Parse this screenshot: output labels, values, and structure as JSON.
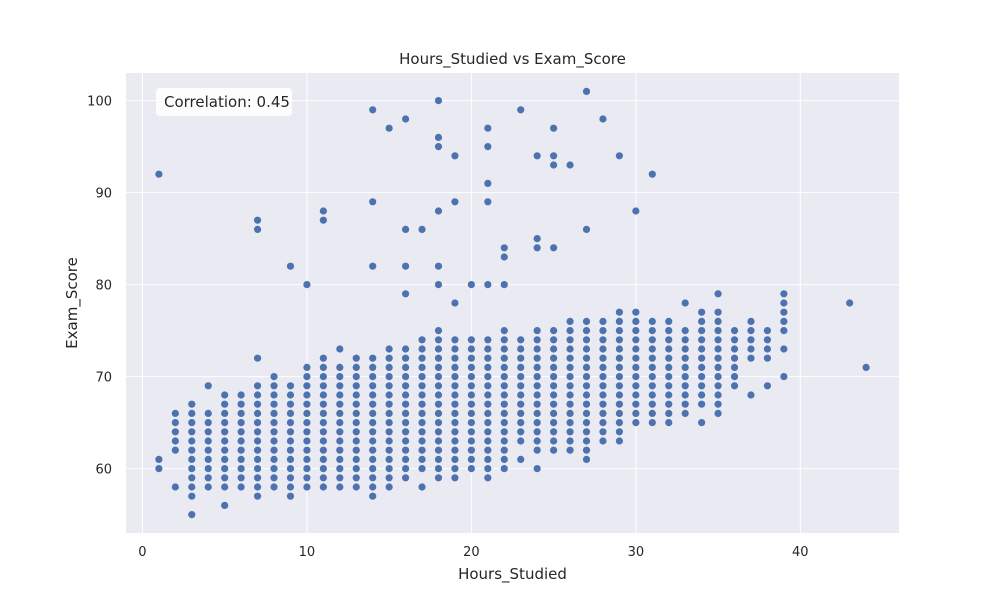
{
  "chart_data": {
    "type": "scatter",
    "title": "Hours_Studied vs Exam_Score",
    "xlabel": "Hours_Studied",
    "ylabel": "Exam_Score",
    "xlim": [
      -1,
      46
    ],
    "ylim": [
      53,
      103
    ],
    "xticks": [
      0,
      10,
      20,
      30,
      40
    ],
    "yticks": [
      60,
      70,
      80,
      90,
      100
    ],
    "grid": true,
    "annotation": "Correlation: 0.45",
    "annotation_position": "top-left",
    "colors": {
      "background": "#eaeaf2",
      "grid": "#ffffff",
      "point": "#4c72b0"
    },
    "outliers": [
      [
        1,
        92
      ],
      [
        7,
        87
      ],
      [
        7,
        86
      ],
      [
        9,
        82
      ],
      [
        10,
        80
      ],
      [
        11,
        88
      ],
      [
        11,
        87
      ],
      [
        14,
        99
      ],
      [
        14,
        89
      ],
      [
        14,
        82
      ],
      [
        15,
        97
      ],
      [
        16,
        98
      ],
      [
        16,
        86
      ],
      [
        16,
        82
      ],
      [
        16,
        79
      ],
      [
        17,
        86
      ],
      [
        18,
        100
      ],
      [
        18,
        96
      ],
      [
        18,
        95
      ],
      [
        18,
        88
      ],
      [
        18,
        82
      ],
      [
        18,
        80
      ],
      [
        19,
        94
      ],
      [
        19,
        89
      ],
      [
        19,
        78
      ],
      [
        20,
        80
      ],
      [
        21,
        97
      ],
      [
        21,
        95
      ],
      [
        21,
        91
      ],
      [
        21,
        89
      ],
      [
        21,
        80
      ],
      [
        22,
        84
      ],
      [
        22,
        83
      ],
      [
        22,
        80
      ],
      [
        23,
        99
      ],
      [
        24,
        94
      ],
      [
        24,
        85
      ],
      [
        24,
        84
      ],
      [
        25,
        97
      ],
      [
        25,
        94
      ],
      [
        25,
        93
      ],
      [
        25,
        84
      ],
      [
        26,
        93
      ],
      [
        27,
        101
      ],
      [
        27,
        86
      ],
      [
        28,
        98
      ],
      [
        29,
        94
      ],
      [
        30,
        88
      ],
      [
        31,
        92
      ],
      [
        43,
        78
      ],
      [
        44,
        71
      ]
    ],
    "ranges": [
      [
        1,
        60,
        61
      ],
      [
        2,
        62,
        66
      ],
      [
        2,
        58,
        58
      ],
      [
        3,
        55,
        55
      ],
      [
        3,
        57,
        67
      ],
      [
        4,
        58,
        66
      ],
      [
        4,
        69,
        69
      ],
      [
        5,
        56,
        56
      ],
      [
        5,
        58,
        68
      ],
      [
        6,
        58,
        68
      ],
      [
        7,
        57,
        69
      ],
      [
        7,
        72,
        72
      ],
      [
        8,
        58,
        70
      ],
      [
        9,
        57,
        69
      ],
      [
        10,
        58,
        71
      ],
      [
        11,
        58,
        72
      ],
      [
        12,
        58,
        71
      ],
      [
        12,
        73,
        73
      ],
      [
        13,
        58,
        72
      ],
      [
        14,
        57,
        72
      ],
      [
        15,
        58,
        73
      ],
      [
        16,
        59,
        73
      ],
      [
        17,
        58,
        58
      ],
      [
        17,
        60,
        74
      ],
      [
        18,
        59,
        75
      ],
      [
        19,
        59,
        74
      ],
      [
        20,
        60,
        74
      ],
      [
        21,
        59,
        74
      ],
      [
        22,
        60,
        75
      ],
      [
        23,
        61,
        61
      ],
      [
        23,
        63,
        74
      ],
      [
        24,
        60,
        60
      ],
      [
        24,
        62,
        75
      ],
      [
        25,
        62,
        75
      ],
      [
        26,
        62,
        76
      ],
      [
        27,
        61,
        76
      ],
      [
        28,
        63,
        76
      ],
      [
        29,
        63,
        77
      ],
      [
        30,
        65,
        77
      ],
      [
        31,
        65,
        76
      ],
      [
        32,
        65,
        76
      ],
      [
        33,
        66,
        75
      ],
      [
        33,
        78,
        78
      ],
      [
        34,
        65,
        65
      ],
      [
        34,
        67,
        77
      ],
      [
        35,
        66,
        77
      ],
      [
        35,
        79,
        79
      ],
      [
        36,
        69,
        75
      ],
      [
        37,
        68,
        68
      ],
      [
        37,
        72,
        76
      ],
      [
        38,
        69,
        69
      ],
      [
        38,
        72,
        75
      ],
      [
        39,
        70,
        70
      ],
      [
        39,
        73,
        73
      ],
      [
        39,
        75,
        79
      ]
    ]
  }
}
